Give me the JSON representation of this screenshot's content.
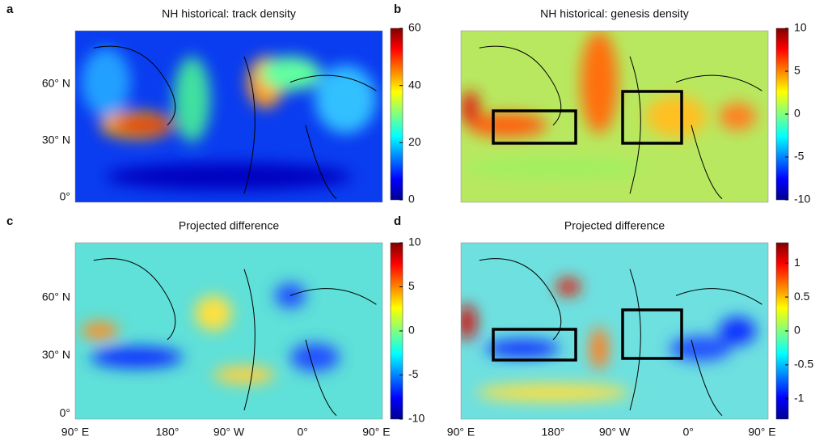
{
  "panels": [
    {
      "letter": "a",
      "title": "NH historical: track density",
      "colorbar": {
        "lim": [
          0,
          60
        ],
        "ticks": [
          0,
          20,
          40,
          60
        ]
      }
    },
    {
      "letter": "b",
      "title": "NH historical: genesis density",
      "colorbar": {
        "lim": [
          -10,
          10
        ],
        "ticks": [
          -10,
          -5,
          0,
          5,
          10
        ]
      }
    },
    {
      "letter": "c",
      "title": "Projected difference",
      "colorbar": {
        "lim": [
          -10,
          10
        ],
        "ticks": [
          -10,
          -5,
          0,
          5,
          10
        ]
      }
    },
    {
      "letter": "d",
      "title": "Projected difference",
      "colorbar": {
        "lim": [
          -1.3,
          1.3
        ],
        "ticks": [
          -1,
          -0.5,
          0,
          0.5,
          1
        ]
      }
    }
  ],
  "lat_labels": [
    "60° N",
    "30° N",
    "0°"
  ],
  "lon_labels": [
    "90° E",
    "180°",
    "90° W",
    "0°",
    "90° E"
  ]
}
